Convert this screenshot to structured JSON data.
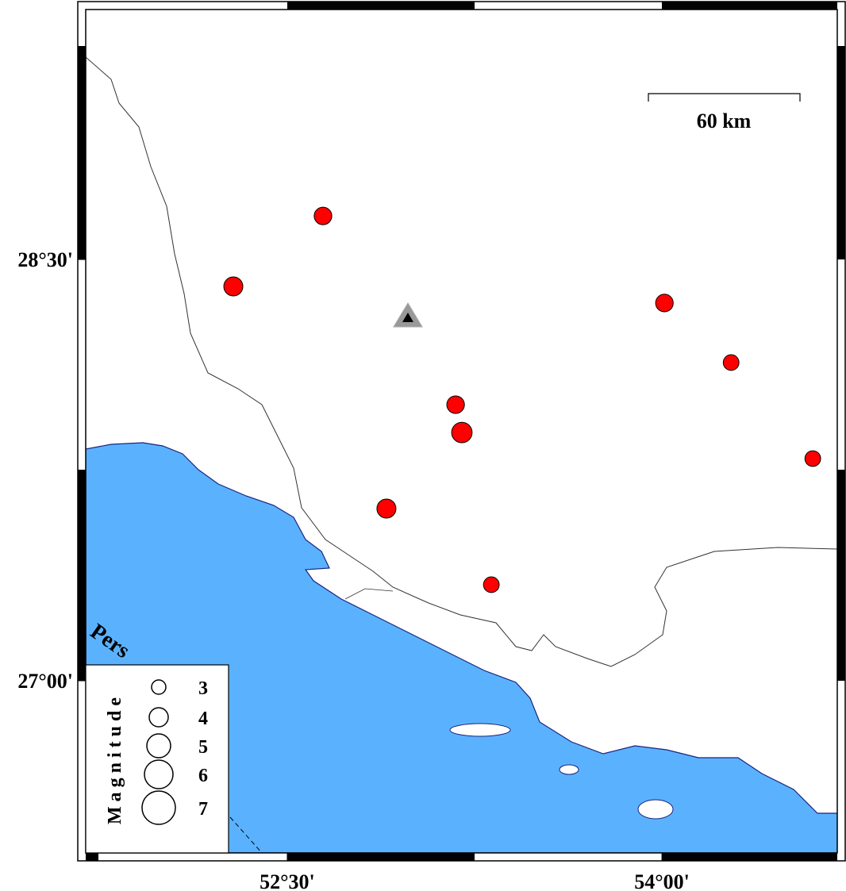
{
  "map": {
    "xlim": [
      51.693,
      54.702
    ],
    "ylim": [
      26.387,
      29.39
    ],
    "xticks": [
      {
        "value": 52.5,
        "label": "52°30'"
      },
      {
        "value": 54,
        "label": "54°00'"
      }
    ],
    "yticks": [
      {
        "value": 28.5,
        "label": "28°30'"
      },
      {
        "value": 27,
        "label": "27°00'"
      }
    ],
    "scale_label": "60 km",
    "sea_label": "Pers",
    "event_color": "#ff0000",
    "events": [
      {
        "lon": 52.643,
        "lat": 28.655,
        "magnitude": 3.7
      },
      {
        "lon": 52.284,
        "lat": 28.404,
        "magnitude": 4.0
      },
      {
        "lon": 54.01,
        "lat": 28.345,
        "magnitude": 3.7
      },
      {
        "lon": 54.277,
        "lat": 28.133,
        "magnitude": 3.3
      },
      {
        "lon": 53.174,
        "lat": 27.983,
        "magnitude": 3.7
      },
      {
        "lon": 53.199,
        "lat": 27.884,
        "magnitude": 4.3
      },
      {
        "lon": 54.604,
        "lat": 27.791,
        "magnitude": 3.3
      },
      {
        "lon": 52.897,
        "lat": 27.613,
        "magnitude": 4.0
      },
      {
        "lon": 53.317,
        "lat": 27.342,
        "magnitude": 3.3
      }
    ],
    "station": {
      "lon": 52.983,
      "lat": 28.294
    },
    "legend": {
      "title": "Magnitude",
      "sizes": [
        3,
        4,
        5,
        6,
        7
      ]
    }
  }
}
